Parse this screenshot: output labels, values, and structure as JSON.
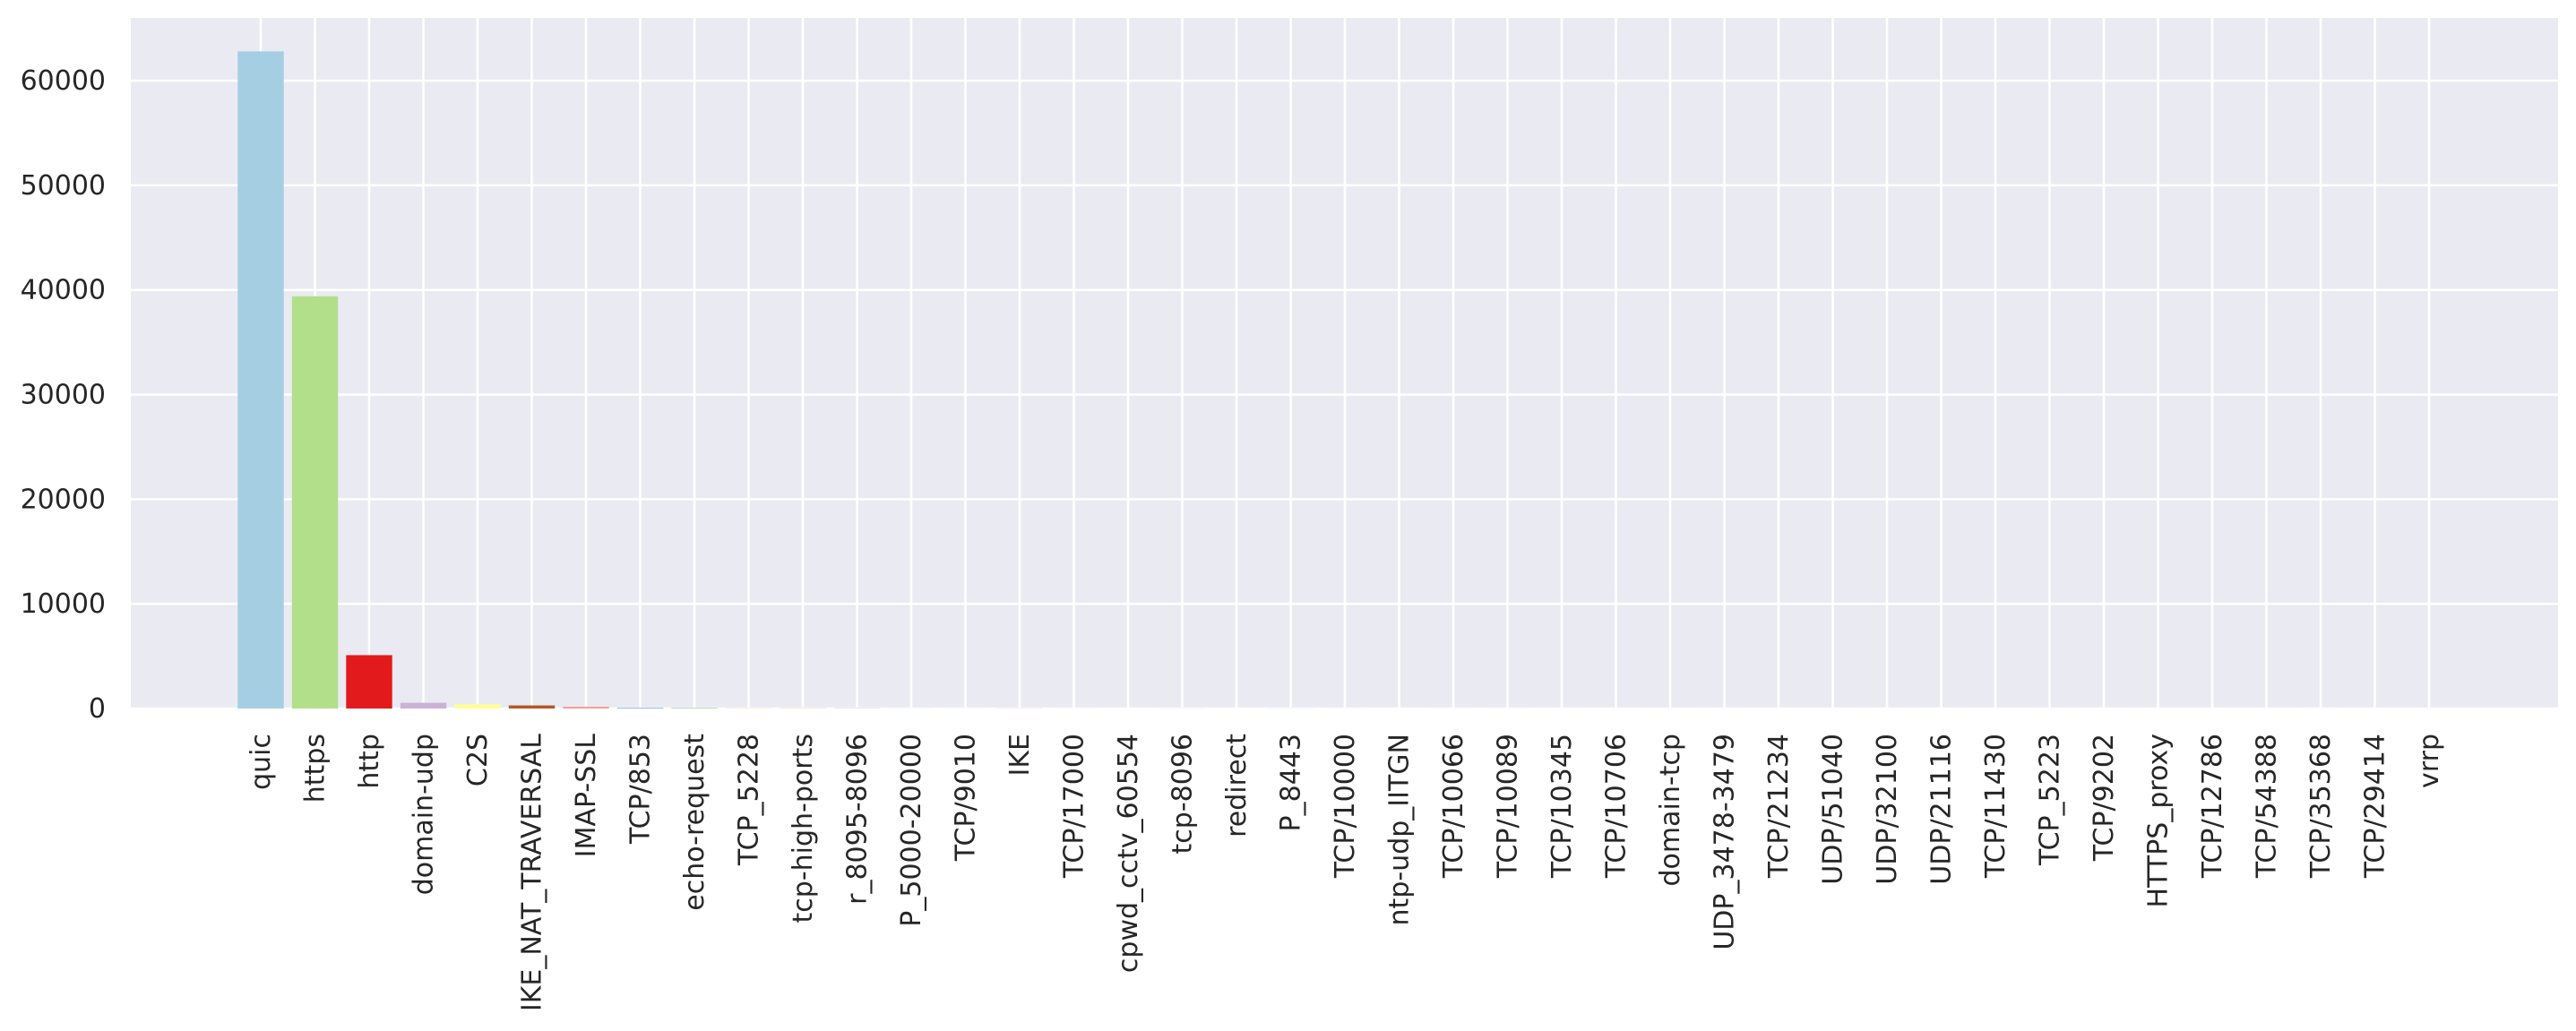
{
  "chart_data": {
    "type": "bar",
    "title": "",
    "xlabel": "",
    "ylabel": "",
    "ylim": [
      0,
      66000
    ],
    "yticks": [
      0,
      10000,
      20000,
      30000,
      40000,
      50000,
      60000
    ],
    "grid": true,
    "legend": "none",
    "background": "#eaeaf2",
    "gridColor": "#ffffff",
    "categories": [
      "quic",
      "https",
      "http",
      "domain-udp",
      "C2S",
      "IKE_NAT_TRAVERSAL",
      "IMAP-SSL",
      "TCP/853",
      "echo-request",
      "TCP_5228",
      "tcp-high-ports",
      "r_8095-8096",
      "P_5000-20000",
      "TCP/9010",
      "IKE",
      "TCP/17000",
      "cpwd_cctv_60554",
      "tcp-8096",
      "redirect",
      "P_8443",
      "TCP/10000",
      "ntp-udp_IITGN",
      "TCP/10066",
      "TCP/10089",
      "TCP/10345",
      "TCP/10706",
      "domain-tcp",
      "UDP_3478-3479",
      "TCP/21234",
      "UDP/51040",
      "UDP/32100",
      "UDP/21116",
      "TCP/11430",
      "TCP_5223",
      "TCP/9202",
      "HTTPS_proxy",
      "TCP/12786",
      "TCP/54388",
      "TCP/35368",
      "TCP/29414",
      "vrrp"
    ],
    "values": [
      62800,
      39400,
      5100,
      550,
      420,
      300,
      170,
      40,
      30,
      20,
      15,
      12,
      10,
      8,
      7,
      6,
      5,
      5,
      4,
      4,
      3,
      3,
      3,
      2,
      2,
      2,
      2,
      2,
      2,
      1,
      1,
      1,
      1,
      1,
      1,
      1,
      1,
      1,
      1,
      1,
      1
    ],
    "colors": [
      "#a6cee3",
      "#b2df8a",
      "#e31a1c",
      "#cab2d6",
      "#ffff99",
      "#b15928",
      "#fb9a99",
      "#1f78b4",
      "#33a02c",
      "#fdbf6f",
      "#ff7f00",
      "#6a3d9a",
      "#a6cee3",
      "#b2df8a",
      "#e31a1c",
      "#cab2d6",
      "#ffff99",
      "#b15928",
      "#fb9a99",
      "#1f78b4",
      "#33a02c",
      "#fdbf6f",
      "#ff7f00",
      "#6a3d9a",
      "#a6cee3",
      "#b2df8a",
      "#e31a1c",
      "#cab2d6",
      "#ffff99",
      "#b15928",
      "#fb9a99",
      "#1f78b4",
      "#33a02c",
      "#fdbf6f",
      "#ff7f00",
      "#6a3d9a",
      "#a6cee3",
      "#b2df8a",
      "#e31a1c",
      "#cab2d6",
      "#ffff99"
    ]
  }
}
